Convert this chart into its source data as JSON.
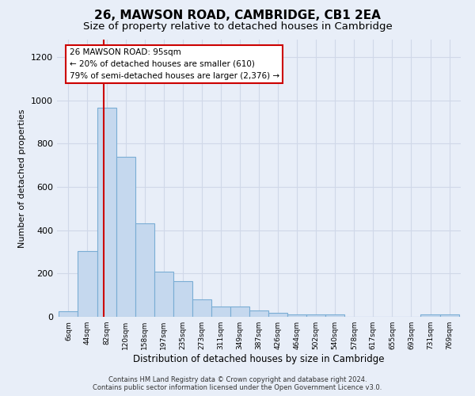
{
  "title1": "26, MAWSON ROAD, CAMBRIDGE, CB1 2EA",
  "title2": "Size of property relative to detached houses in Cambridge",
  "xlabel": "Distribution of detached houses by size in Cambridge",
  "ylabel": "Number of detached properties",
  "categories": [
    "6sqm",
    "44sqm",
    "82sqm",
    "120sqm",
    "158sqm",
    "197sqm",
    "235sqm",
    "273sqm",
    "311sqm",
    "349sqm",
    "387sqm",
    "426sqm",
    "464sqm",
    "502sqm",
    "540sqm",
    "578sqm",
    "617sqm",
    "655sqm",
    "693sqm",
    "731sqm",
    "769sqm"
  ],
  "values": [
    25,
    305,
    965,
    740,
    430,
    210,
    165,
    80,
    48,
    46,
    30,
    18,
    10,
    10,
    10,
    0,
    0,
    0,
    0,
    12,
    12
  ],
  "bar_color": "#c5d8ee",
  "bar_edge_color": "#7aadd4",
  "annotation_text": "26 MAWSON ROAD: 95sqm\n← 20% of detached houses are smaller (610)\n79% of semi-detached houses are larger (2,376) →",
  "vline_color": "#cc0000",
  "vline_x": 2.0,
  "annotation_box_color": "white",
  "annotation_box_edge_color": "#cc0000",
  "footnote1": "Contains HM Land Registry data © Crown copyright and database right 2024.",
  "footnote2": "Contains public sector information licensed under the Open Government Licence v3.0.",
  "ylim": [
    0,
    1280
  ],
  "yticks": [
    0,
    200,
    400,
    600,
    800,
    1000,
    1200
  ],
  "bg_color": "#e8eef8",
  "grid_color": "#d0d8e8",
  "title1_fontsize": 11,
  "title2_fontsize": 9.5,
  "bar_width": 1.0
}
